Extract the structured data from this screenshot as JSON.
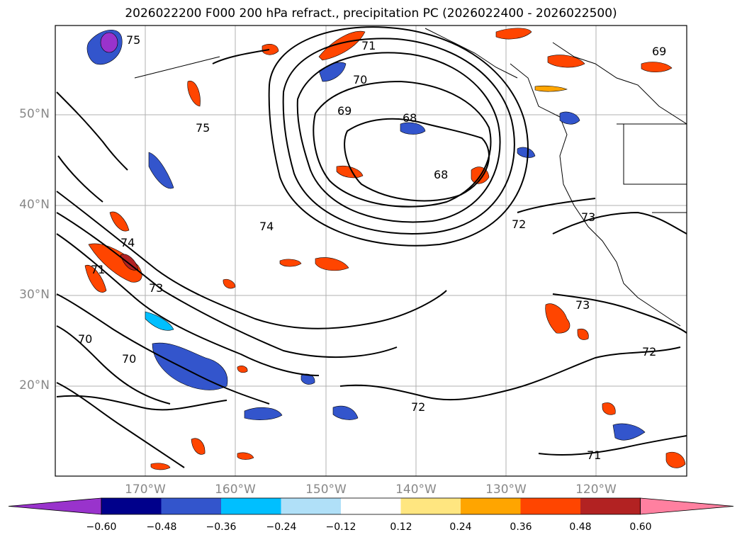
{
  "title": "2026022200 F000 200 hPa refract., precipitation PC (2026022400 - 2026022500)",
  "lat_labels": [
    "50°N",
    "40°N",
    "30°N",
    "20°N"
  ],
  "lon_labels": [
    "170°W",
    "160°W",
    "150°W",
    "140°W",
    "130°W",
    "120°W"
  ],
  "contour_labels": [
    "75",
    "71",
    "69",
    "70",
    "69",
    "68",
    "68",
    "72",
    "73",
    "75",
    "74",
    "74",
    "71",
    "73",
    "70",
    "70",
    "72",
    "73",
    "72",
    "71"
  ],
  "colorbar": {
    "ticks": [
      "−0.60",
      "−0.48",
      "−0.36",
      "−0.24",
      "−0.12",
      "0.12",
      "0.24",
      "0.36",
      "0.48",
      "0.60"
    ],
    "colors": [
      "#9933cc",
      "#00008b",
      "#3355cc",
      "#00bfff",
      "#b0e0f8",
      "#ffffff",
      "#ffe680",
      "#ffa500",
      "#ff4500",
      "#b22222",
      "#ff80a0"
    ]
  }
}
